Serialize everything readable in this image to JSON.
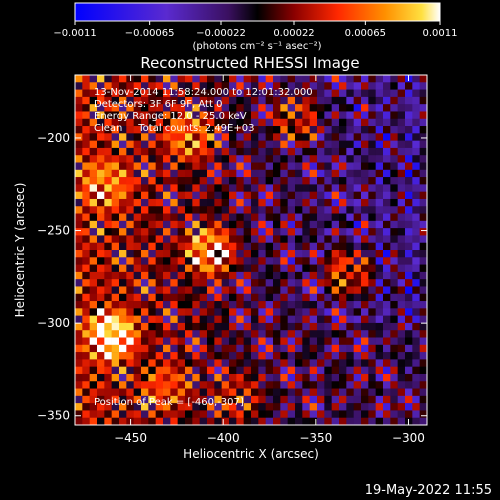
{
  "chart_data": {
    "type": "heatmap",
    "title": "Reconstructed RHESSI Image",
    "xlabel": "Heliocentric X (arcsec)",
    "ylabel": "Heliocentric Y (arcsec)",
    "xlim": [
      -480,
      -290
    ],
    "ylim": [
      -355,
      -166
    ],
    "xticks": [
      -450,
      -400,
      -350,
      -300
    ],
    "yticks": [
      -200,
      -250,
      -300,
      -350
    ],
    "colorbar": {
      "label": "(photons cm⁻² s⁻¹ asec⁻²)",
      "range": [
        -0.0011,
        0.0011
      ],
      "ticks": [
        "-0.0011",
        "-0.00065",
        "-0.00022",
        "0.00022",
        "0.00065",
        "0.0011"
      ],
      "ticks_display": [
        "−0.0011",
        "−0.00065",
        "−0.00022",
        "0.00022",
        "0.00065",
        "0.0011"
      ]
    },
    "annotations": [
      "13-Nov-2014 11:58:24.000 to 12:01:32.000",
      "Detectors: 3F 6F 9F, Att 0",
      "Energy Range: 12.0 - 25.0 keV",
      "Clean     Total counts: 2.49E+03"
    ],
    "peak_label": "Position of Peak = [-460,-307]",
    "peak_position": [
      -460,
      -307
    ],
    "sources": [
      {
        "x": -460,
        "y": -307,
        "peak": 0.0011
      },
      {
        "x": -407,
        "y": -261,
        "peak": 0.00095
      },
      {
        "x": -333,
        "y": -273,
        "peak": 0.0008
      },
      {
        "x": -418,
        "y": -199,
        "peak": 0.0007
      },
      {
        "x": -360,
        "y": -190,
        "peak": 0.0006
      },
      {
        "x": -463,
        "y": -225,
        "peak": 0.0006
      },
      {
        "x": -430,
        "y": -335,
        "peak": 0.0005
      },
      {
        "x": -392,
        "y": -340,
        "peak": 0.00045
      }
    ]
  },
  "footer": {
    "date": "19-May-2022 11:55"
  },
  "colors": {
    "background": "#000000",
    "text": "#ffffff",
    "colormap": [
      "#0000ff",
      "#5020c0",
      "#602080",
      "#000000",
      "#800000",
      "#ff2000",
      "#ff8000",
      "#ffe000",
      "#ffffff"
    ]
  }
}
